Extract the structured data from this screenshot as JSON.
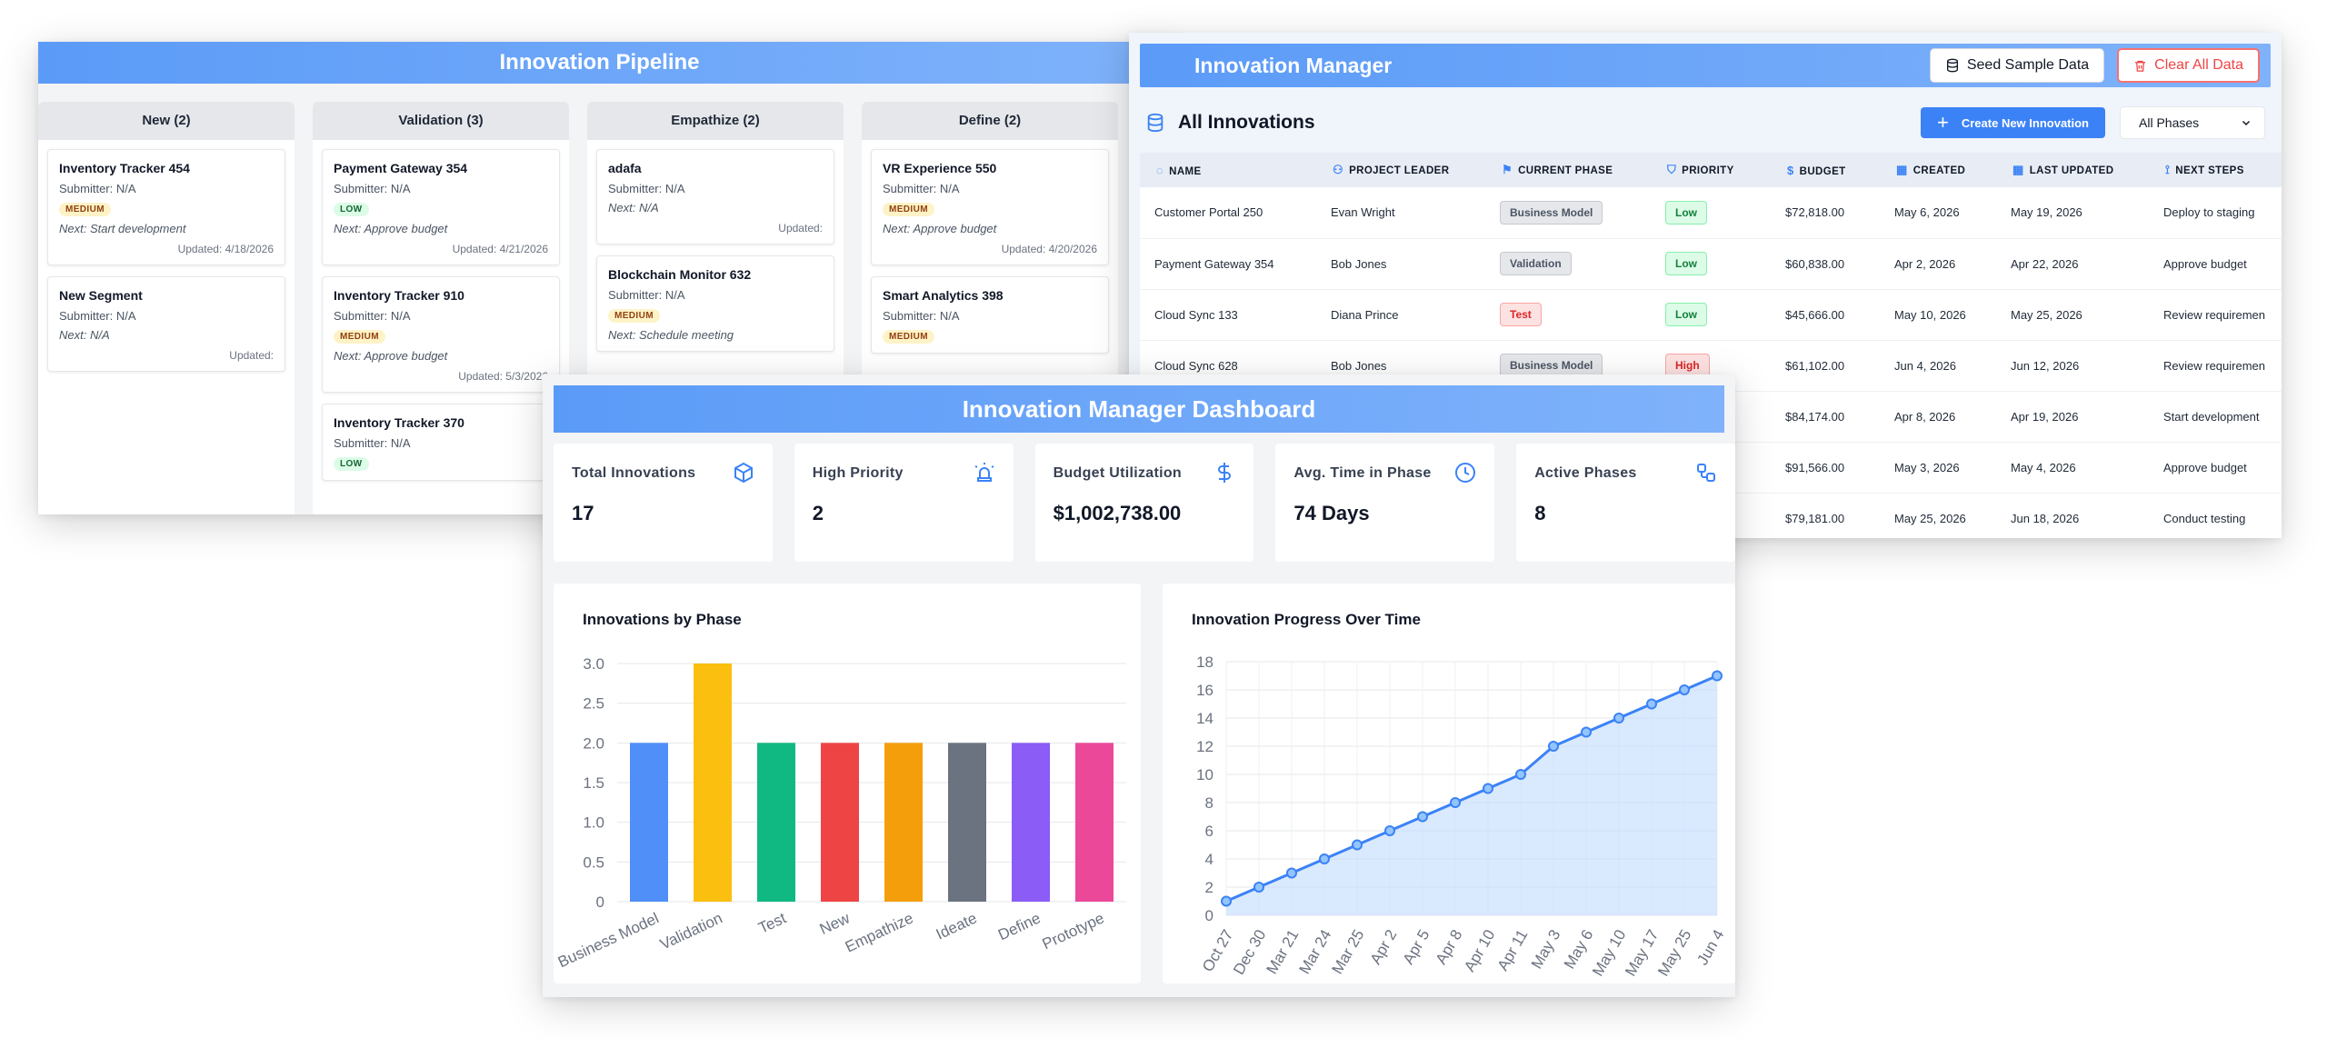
{
  "pipeline": {
    "title": "Innovation Pipeline",
    "columns": [
      {
        "label": "New (2)",
        "cards": [
          {
            "title": "Inventory Tracker 454",
            "submitter": "Submitter: N/A",
            "priority": "MEDIUM",
            "next": "Next: Start development",
            "updated": "Updated: 4/18/2026"
          },
          {
            "title": "New Segment",
            "submitter": "Submitter: N/A",
            "priority": "",
            "next": "Next: N/A",
            "updated": "Updated:"
          }
        ]
      },
      {
        "label": "Validation (3)",
        "cards": [
          {
            "title": "Payment Gateway 354",
            "submitter": "Submitter: N/A",
            "priority": "LOW",
            "next": "Next: Approve budget",
            "updated": "Updated: 4/21/2026"
          },
          {
            "title": "Inventory Tracker 910",
            "submitter": "Submitter: N/A",
            "priority": "MEDIUM",
            "next": "Next: Approve budget",
            "updated": "Updated: 5/3/2026"
          },
          {
            "title": "Inventory Tracker 370",
            "submitter": "Submitter: N/A",
            "priority": "LOW",
            "next": "",
            "updated": ""
          }
        ]
      },
      {
        "label": "Empathize (2)",
        "cards": [
          {
            "title": "adafa",
            "submitter": "Submitter: N/A",
            "priority": "",
            "next": "Next: N/A",
            "updated": "Updated:"
          },
          {
            "title": "Blockchain Monitor 632",
            "submitter": "Submitter: N/A",
            "priority": "MEDIUM",
            "next": "Next: Schedule meeting",
            "updated": ""
          }
        ]
      },
      {
        "label": "Define (2)",
        "cards": [
          {
            "title": "VR Experience 550",
            "submitter": "Submitter: N/A",
            "priority": "MEDIUM",
            "next": "Next: Approve budget",
            "updated": "Updated: 4/20/2026"
          },
          {
            "title": "Smart Analytics 398",
            "submitter": "Submitter: N/A",
            "priority": "MEDIUM",
            "next": "",
            "updated": ""
          }
        ]
      }
    ]
  },
  "manager": {
    "title": "Innovation Manager",
    "seed_label": "Seed Sample Data",
    "clear_label": "Clear All Data",
    "list_title": "All Innovations",
    "create_label": "Create New Innovation",
    "filter_value": "All Phases",
    "columns": [
      "NAME",
      "PROJECT LEADER",
      "CURRENT PHASE",
      "PRIORITY",
      "BUDGET",
      "CREATED",
      "LAST UPDATED",
      "NEXT STEPS"
    ],
    "rows": [
      {
        "name": "Customer Portal 250",
        "leader": "Evan Wright",
        "phase": "Business Model",
        "priority": "Low",
        "budget": "$72,818.00",
        "created": "May 6, 2026",
        "updated": "May 19, 2026",
        "next": "Deploy to staging"
      },
      {
        "name": "Payment Gateway 354",
        "leader": "Bob Jones",
        "phase": "Validation",
        "priority": "Low",
        "budget": "$60,838.00",
        "created": "Apr 2, 2026",
        "updated": "Apr 22, 2026",
        "next": "Approve budget"
      },
      {
        "name": "Cloud Sync 133",
        "leader": "Diana Prince",
        "phase": "Test",
        "priority": "Low",
        "budget": "$45,666.00",
        "created": "May 10, 2026",
        "updated": "May 25, 2026",
        "next": "Review requiremen"
      },
      {
        "name": "Cloud Sync 628",
        "leader": "Bob Jones",
        "phase": "Business Model",
        "priority": "High",
        "budget": "$61,102.00",
        "created": "Jun 4, 2026",
        "updated": "Jun 12, 2026",
        "next": "Review requiremen"
      },
      {
        "name": "",
        "leader": "",
        "phase": "",
        "priority": "",
        "budget": "$84,174.00",
        "created": "Apr 8, 2026",
        "updated": "Apr 19, 2026",
        "next": "Start development"
      },
      {
        "name": "",
        "leader": "",
        "phase": "",
        "priority": "",
        "budget": "$91,566.00",
        "created": "May 3, 2026",
        "updated": "May 4, 2026",
        "next": "Approve budget"
      },
      {
        "name": "",
        "leader": "",
        "phase": "",
        "priority": "",
        "budget": "$79,181.00",
        "created": "May 25, 2026",
        "updated": "Jun 18, 2026",
        "next": "Conduct testing"
      }
    ]
  },
  "dashboard": {
    "title": "Innovation Manager Dashboard",
    "stats": [
      {
        "label": "Total Innovations",
        "value": "17",
        "icon": "cube-icon"
      },
      {
        "label": "High Priority",
        "value": "2",
        "icon": "siren-icon"
      },
      {
        "label": "Budget Utilization",
        "value": "$1,002,738.00",
        "icon": "dollar-icon"
      },
      {
        "label": "Avg. Time in Phase",
        "value": "74 Days",
        "icon": "clock-icon"
      },
      {
        "label": "Active Phases",
        "value": "8",
        "icon": "workflow-icon"
      }
    ]
  },
  "chart_data": [
    {
      "type": "bar",
      "title": "Innovations by Phase",
      "categories": [
        "Business Model",
        "Validation",
        "Test",
        "New",
        "Empathize",
        "Ideate",
        "Define",
        "Prototype"
      ],
      "values": [
        2,
        3,
        2,
        2,
        2,
        2,
        2,
        2
      ],
      "colors": [
        "#4f8ff7",
        "#fbbf10",
        "#10b981",
        "#ef4444",
        "#f59e0b",
        "#6b7280",
        "#8b5cf6",
        "#ec4899"
      ],
      "ylim": [
        0,
        3.0
      ],
      "yticks": [
        "0",
        "0.5",
        "1.0",
        "1.5",
        "2.0",
        "2.5",
        "3.0"
      ],
      "grid": true
    },
    {
      "type": "area",
      "title": "Innovation Progress Over Time",
      "x": [
        "Oct 27",
        "Dec 30",
        "Mar 21",
        "Mar 24",
        "Mar 25",
        "Apr 2",
        "Apr 5",
        "Apr 8",
        "Apr 10",
        "Apr 11",
        "May 3",
        "May 6",
        "May 10",
        "May 17",
        "May 25",
        "Jun 4"
      ],
      "values": [
        1,
        2,
        3,
        4,
        5,
        6,
        7,
        8,
        9,
        10,
        12,
        13,
        14,
        15,
        16,
        17
      ],
      "ylim": [
        0,
        18
      ],
      "yticks": [
        "0",
        "2",
        "4",
        "6",
        "8",
        "10",
        "12",
        "14",
        "16",
        "18"
      ],
      "color": "#3b82f6",
      "grid": true
    }
  ]
}
